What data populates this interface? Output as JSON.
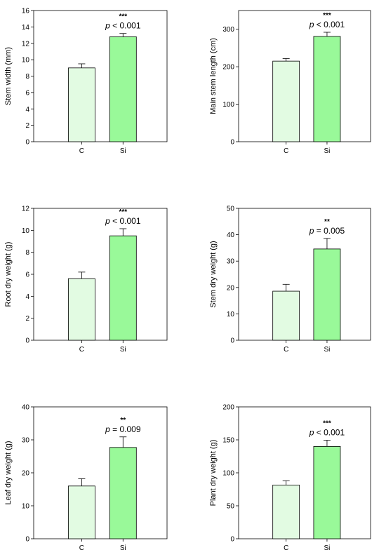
{
  "chart_data": [
    {
      "type": "bar",
      "ylabel": "Stem width (mm)",
      "categories": [
        "C",
        "Si"
      ],
      "values": [
        9.0,
        12.8
      ],
      "errors": [
        0.5,
        0.4
      ],
      "ylim": [
        0,
        16
      ],
      "yticks": [
        0,
        2,
        4,
        6,
        8,
        10,
        12,
        14,
        16
      ],
      "stars": "***",
      "pvalue": "< 0.001"
    },
    {
      "type": "bar",
      "ylabel": "Main stem length (cm)",
      "categories": [
        "C",
        "Si"
      ],
      "values": [
        215,
        281
      ],
      "errors": [
        7,
        11
      ],
      "ylim": [
        0,
        350
      ],
      "yticks": [
        0,
        100,
        200,
        300
      ],
      "stars": "***",
      "pvalue": "< 0.001"
    },
    {
      "type": "bar",
      "ylabel": "Root dry weight (g)",
      "categories": [
        "C",
        "Si"
      ],
      "values": [
        5.6,
        9.5
      ],
      "errors": [
        0.6,
        0.65
      ],
      "ylim": [
        0,
        12
      ],
      "yticks": [
        0,
        2,
        4,
        6,
        8,
        10,
        12
      ],
      "stars": "***",
      "pvalue": "< 0.001"
    },
    {
      "type": "bar",
      "ylabel": "Stem dry weight (g)",
      "categories": [
        "C",
        "Si"
      ],
      "values": [
        18.6,
        34.6
      ],
      "errors": [
        2.6,
        4.0
      ],
      "ylim": [
        0,
        50
      ],
      "yticks": [
        0,
        10,
        20,
        30,
        40,
        50
      ],
      "stars": "**",
      "pvalue": "= 0.005"
    },
    {
      "type": "bar",
      "ylabel": "Leaf dry weight (g)",
      "categories": [
        "C",
        "Si"
      ],
      "values": [
        16.0,
        27.7
      ],
      "errors": [
        2.2,
        3.2
      ],
      "ylim": [
        0,
        40
      ],
      "yticks": [
        0,
        10,
        20,
        30,
        40
      ],
      "stars": "**",
      "pvalue": "= 0.009"
    },
    {
      "type": "bar",
      "ylabel": "Plant dry weight (g)",
      "categories": [
        "C",
        "Si"
      ],
      "values": [
        81.5,
        140
      ],
      "errors": [
        6.5,
        9.5
      ],
      "ylim": [
        0,
        200
      ],
      "yticks": [
        0,
        50,
        100,
        150,
        200
      ],
      "stars": "***",
      "pvalue": "< 0.001"
    }
  ],
  "colors": {
    "bar_C": "#e2fbe2",
    "bar_Si": "#99f999",
    "stroke": "#000000"
  },
  "p_symbol": "p"
}
